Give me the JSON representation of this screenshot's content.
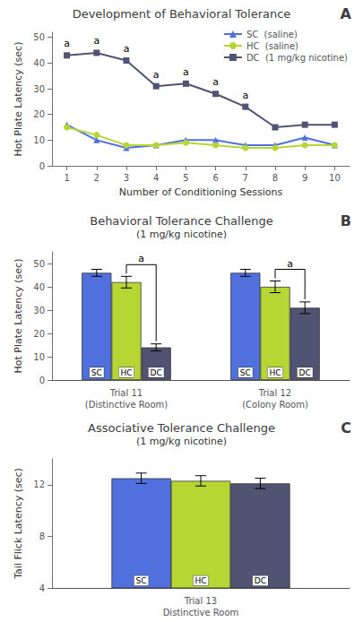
{
  "chart_data": [
    {
      "type": "line",
      "title": "Development of Behavioral Tolerance",
      "panel_label": "A",
      "xlabel": "Number of Conditioning Sessions",
      "ylabel": "Hot Plate Latency (sec)",
      "x": [
        1,
        2,
        3,
        4,
        5,
        6,
        7,
        8,
        9,
        10
      ],
      "series": [
        {
          "name": "SC  (saline)",
          "marker": "triangle",
          "values": [
            16,
            10,
            7,
            8,
            10,
            10,
            8,
            8,
            11,
            8
          ]
        },
        {
          "name": "HC  (saline)",
          "marker": "circle",
          "values": [
            15,
            12,
            8,
            8,
            9,
            8,
            7,
            7,
            8,
            8
          ]
        },
        {
          "name": "DC  (1 mg/kg nicotine)",
          "marker": "square",
          "values": [
            43,
            44,
            41,
            31,
            32,
            28,
            23,
            15,
            16,
            16
          ]
        }
      ],
      "annotations": [
        {
          "series": "DC  (1 mg/kg nicotine)",
          "x": 1,
          "text": "a"
        },
        {
          "series": "DC  (1 mg/kg nicotine)",
          "x": 2,
          "text": "a"
        },
        {
          "series": "DC  (1 mg/kg nicotine)",
          "x": 3,
          "text": "a"
        },
        {
          "series": "DC  (1 mg/kg nicotine)",
          "x": 4,
          "text": "a"
        },
        {
          "series": "DC  (1 mg/kg nicotine)",
          "x": 5,
          "text": "a"
        },
        {
          "series": "DC  (1 mg/kg nicotine)",
          "x": 6,
          "text": "a"
        },
        {
          "series": "DC  (1 mg/kg nicotine)",
          "x": 7,
          "text": "a"
        }
      ],
      "xlim": [
        0.5,
        10.5
      ],
      "xticks": [
        1,
        2,
        3,
        4,
        5,
        6,
        7,
        8,
        9,
        10
      ],
      "ylim": [
        0,
        52
      ],
      "yticks": [
        0,
        10,
        20,
        30,
        40,
        50
      ],
      "grid": false,
      "legend": "upper right"
    },
    {
      "type": "bar",
      "title": "Behavioral Tolerance Challenge",
      "subtitle": "(1 mg/kg nicotine)",
      "panel_label": "B",
      "ylabel": "Hot Plate Latency (sec)",
      "categories": [
        "Trial 11\n(Distinctive Room)",
        "Trial 12\n(Colony Room)"
      ],
      "series": [
        {
          "name": "SC",
          "values": [
            46,
            46
          ],
          "errors": [
            1.5,
            1.5
          ]
        },
        {
          "name": "HC",
          "values": [
            42,
            40
          ],
          "errors": [
            2.5,
            2.5
          ]
        },
        {
          "name": "DC",
          "values": [
            14,
            31
          ],
          "errors": [
            1.5,
            2.5
          ]
        }
      ],
      "annotations": [
        {
          "category": "Trial 11\n(Distinctive Room)",
          "from": "HC",
          "to": "DC",
          "text": "a"
        },
        {
          "category": "Trial 12\n(Colony Room)",
          "from": "HC",
          "to": "DC",
          "text": "a"
        }
      ],
      "ylim": [
        0,
        55
      ],
      "yticks": [
        0,
        10,
        20,
        30,
        40,
        50
      ],
      "grid": false
    },
    {
      "type": "bar",
      "title": "Associative Tolerance Challenge",
      "subtitle": "(1 mg/kg nicotine)",
      "panel_label": "C",
      "ylabel": "Tail Flick Latency (sec)",
      "categories": [
        "Trial 13\nDistinctive Room"
      ],
      "series": [
        {
          "name": "SC",
          "values": [
            12.5
          ],
          "errors": [
            0.4
          ]
        },
        {
          "name": "HC",
          "values": [
            12.3
          ],
          "errors": [
            0.4
          ]
        },
        {
          "name": "DC",
          "values": [
            12.1
          ],
          "errors": [
            0.4
          ]
        }
      ],
      "ylim": [
        4,
        14
      ],
      "yticks": [
        4,
        8,
        12
      ],
      "grid": false
    }
  ]
}
